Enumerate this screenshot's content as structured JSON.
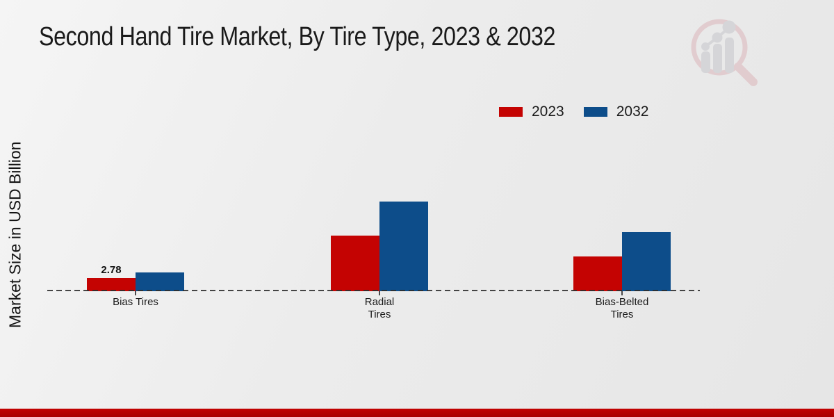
{
  "page": {
    "title": "Second Hand Tire Market, By Tire Type, 2023 & 2032",
    "y_axis_label": "Market Size in USD Billion"
  },
  "legend": {
    "items": [
      {
        "label": "2023"
      },
      {
        "label": "2032"
      }
    ]
  },
  "chart_data": {
    "type": "bar",
    "title": "Second Hand Tire Market, By Tire Type, 2023 & 2032",
    "xlabel": "",
    "ylabel": "Market Size in USD Billion",
    "categories": [
      "Bias Tires",
      "Radial Tires",
      "Bias-Belted Tires"
    ],
    "category_label_lines": [
      [
        "Bias Tires"
      ],
      [
        "Radial",
        "Tires"
      ],
      [
        "Bias-Belted",
        "Tires"
      ]
    ],
    "series": [
      {
        "name": "2023",
        "color": "#c40302",
        "values": [
          2.78,
          12.0,
          7.5
        ]
      },
      {
        "name": "2032",
        "color": "#0d4d8a",
        "values": [
          4.0,
          19.4,
          12.8
        ]
      }
    ],
    "data_labels": [
      {
        "series_index": 0,
        "category_index": 0,
        "text": "2.78"
      }
    ],
    "ylim": [
      0,
      22
    ],
    "grid": false,
    "legend_position": "top-right",
    "baseline_style": "dashed"
  },
  "colors": {
    "accent_red": "#c40302",
    "accent_blue": "#0d4d8a",
    "footer_band": "#c20201"
  },
  "watermark": {
    "icon": "magnifier-growth-chart-logo"
  }
}
